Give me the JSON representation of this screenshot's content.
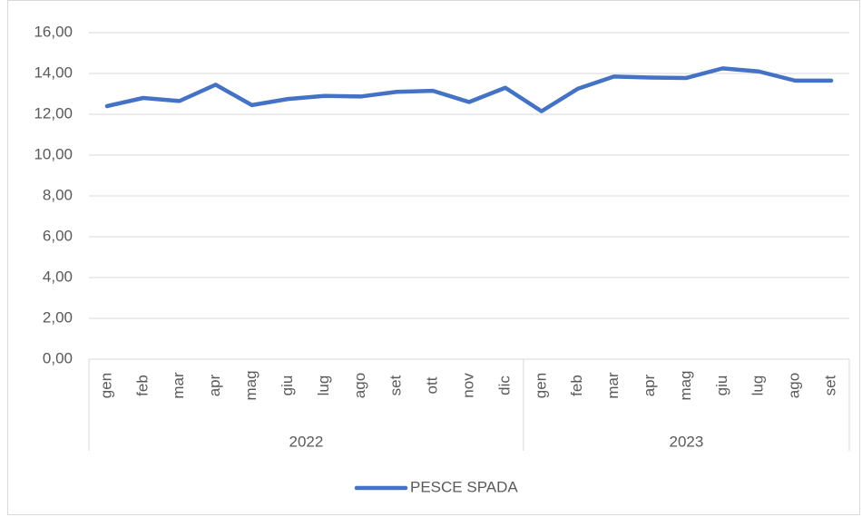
{
  "chart_data": {
    "type": "line",
    "groups": [
      {
        "label": "2022",
        "categories": [
          "gen",
          "feb",
          "mar",
          "apr",
          "mag",
          "giu",
          "lug",
          "ago",
          "set",
          "ott",
          "nov",
          "dic"
        ]
      },
      {
        "label": "2023",
        "categories": [
          "gen",
          "feb",
          "mar",
          "apr",
          "mag",
          "giu",
          "lug",
          "ago",
          "set"
        ]
      }
    ],
    "series": [
      {
        "name": "PESCE SPADA",
        "color": "#4472c4",
        "values": [
          12.4,
          12.8,
          12.65,
          13.45,
          12.45,
          12.75,
          12.9,
          12.87,
          13.1,
          13.15,
          12.6,
          13.3,
          12.15,
          13.25,
          13.85,
          13.8,
          13.78,
          14.25,
          14.1,
          13.65,
          13.65
        ]
      }
    ],
    "ylim": [
      0,
      16
    ],
    "yticks": [
      {
        "value": 0,
        "label": "0,00"
      },
      {
        "value": 2,
        "label": "2,00"
      },
      {
        "value": 4,
        "label": "4,00"
      },
      {
        "value": 6,
        "label": "6,00"
      },
      {
        "value": 8,
        "label": "8,00"
      },
      {
        "value": 10,
        "label": "10,00"
      },
      {
        "value": 12,
        "label": "12,00"
      },
      {
        "value": 14,
        "label": "14,00"
      },
      {
        "value": 16,
        "label": "16,00"
      }
    ],
    "grid": true,
    "legend": "bottom"
  }
}
